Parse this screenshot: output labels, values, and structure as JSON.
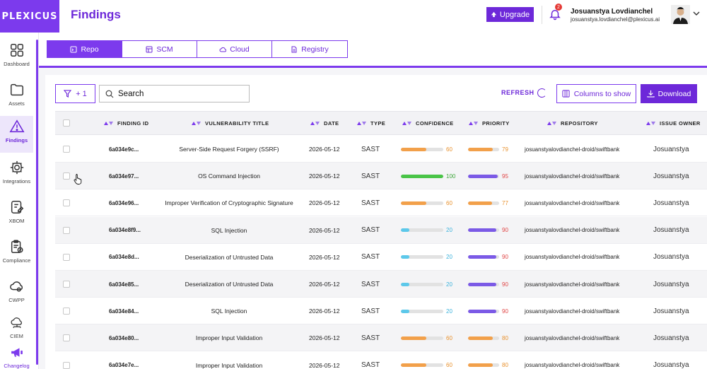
{
  "app": {
    "logo_text": "PLEXICUS",
    "page_title": "Findings"
  },
  "colors": {
    "accent": "#7c3aed",
    "accent_dark": "#6d28d9",
    "bar_orange": "#f2a04a",
    "bar_green": "#49c447",
    "bar_cyan": "#5cc8ea",
    "bar_purple": "#7b5ae6",
    "text_orange": "#e8912d",
    "text_red": "#e04545",
    "text_green": "#3fa83c",
    "text_cyan": "#3cb2dc"
  },
  "sidebar": {
    "items": [
      {
        "label": "Dashboard",
        "icon": "dashboard-grid-icon"
      },
      {
        "label": "Assets",
        "icon": "folder-icon"
      },
      {
        "label": "Findings",
        "icon": "warning-triangle-icon"
      },
      {
        "label": "Integrations",
        "icon": "gear-icon"
      },
      {
        "label": "XBOM",
        "icon": "document-edit-icon"
      },
      {
        "label": "Compliance",
        "icon": "clipboard-check-icon"
      },
      {
        "label": "CWPP",
        "icon": "cloud-gear-icon"
      },
      {
        "label": "CIEM",
        "icon": "cloud-network-icon"
      },
      {
        "label": "Changelog",
        "icon": "megaphone-icon"
      }
    ]
  },
  "header": {
    "upgrade_label": "Upgrade",
    "notification_count": "2",
    "user_name": "Josuanstya Lovdianchel",
    "user_email": "josuanstya.lovdianchel@plexicus.ai"
  },
  "tabs": [
    {
      "label": "Repo",
      "icon": "repo-icon",
      "active": true
    },
    {
      "label": "SCM",
      "icon": "scm-icon",
      "active": false
    },
    {
      "label": "Cloud",
      "icon": "cloud-icon",
      "active": false
    },
    {
      "label": "Registry",
      "icon": "registry-icon",
      "active": false
    }
  ],
  "toolbar": {
    "filter_label": "+ 1",
    "search_placeholder": "Search",
    "refresh_label": "REFRESH",
    "columns_label": "Columns to show",
    "download_label": "Download"
  },
  "table": {
    "columns": [
      "FINDING ID",
      "VULNERABILITY TITLE",
      "DATE",
      "TYPE",
      "CONFIDENCE",
      "PRIORITY",
      "REPOSITORY",
      "ISSUE OWNER"
    ],
    "rows": [
      {
        "id": "6a034e9c...",
        "title": "Server-Side Request Forgery (SSRF)",
        "date": "2026-05-12",
        "type": "SAST",
        "confidence": 60,
        "priority": 79,
        "repo": "josuanstyalovdianchel-droid/swiftbank",
        "owner": "Josuanstya"
      },
      {
        "id": "6a034e97...",
        "title": "OS Command Injection",
        "date": "2026-05-12",
        "type": "SAST",
        "confidence": 100,
        "priority": 95,
        "repo": "josuanstyalovdianchel-droid/swiftbank",
        "owner": "Josuanstya"
      },
      {
        "id": "6a034e96...",
        "title": "Improper Verification of Cryptographic Signature",
        "date": "2026-05-12",
        "type": "SAST",
        "confidence": 60,
        "priority": 77,
        "repo": "josuanstyalovdianchel-droid/swiftbank",
        "owner": "Josuanstya"
      },
      {
        "id": "6a034e8f9...",
        "title": "SQL Injection",
        "date": "2026-05-12",
        "type": "SAST",
        "confidence": 20,
        "priority": 90,
        "repo": "josuanstyalovdianchel-droid/swiftbank",
        "owner": "Josuanstya"
      },
      {
        "id": "6a034e8d...",
        "title": "Deserialization of Untrusted Data",
        "date": "2026-05-12",
        "type": "SAST",
        "confidence": 20,
        "priority": 90,
        "repo": "josuanstyalovdianchel-droid/swiftbank",
        "owner": "Josuanstya"
      },
      {
        "id": "6a034e85...",
        "title": "Deserialization of Untrusted Data",
        "date": "2026-05-12",
        "type": "SAST",
        "confidence": 20,
        "priority": 90,
        "repo": "josuanstyalovdianchel-droid/swiftbank",
        "owner": "Josuanstya"
      },
      {
        "id": "6a034e84...",
        "title": "SQL Injection",
        "date": "2026-05-12",
        "type": "SAST",
        "confidence": 20,
        "priority": 90,
        "repo": "josuanstyalovdianchel-droid/swiftbank",
        "owner": "Josuanstya"
      },
      {
        "id": "6a034e80...",
        "title": "Improper Input Validation",
        "date": "2026-05-12",
        "type": "SAST",
        "confidence": 60,
        "priority": 80,
        "repo": "josuanstyalovdianchel-droid/swiftbank",
        "owner": "Josuanstya"
      },
      {
        "id": "6a034e7e...",
        "title": "Improper Input Validation",
        "date": "2026-05-12",
        "type": "SAST",
        "confidence": 60,
        "priority": 80,
        "repo": "josuanstyalovdianchel-droid/swiftbank",
        "owner": "Josuanstya"
      }
    ]
  }
}
